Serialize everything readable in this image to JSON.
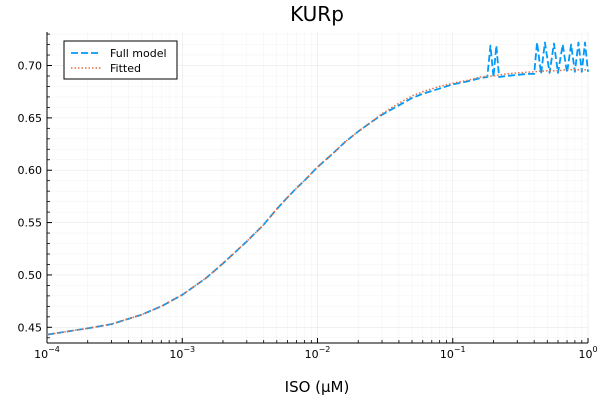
{
  "chart_data": {
    "type": "line",
    "title": "KURp",
    "xlabel": "ISO (μM)",
    "ylabel": "",
    "x_scale": "log",
    "xlim": [
      0.0001,
      1
    ],
    "ylim": [
      0.435,
      0.732
    ],
    "x_ticks": [
      {
        "value": 0.0001,
        "base": "10",
        "exp": "−4"
      },
      {
        "value": 0.001,
        "base": "10",
        "exp": "−3"
      },
      {
        "value": 0.01,
        "base": "10",
        "exp": "−2"
      },
      {
        "value": 0.1,
        "base": "10",
        "exp": "−1"
      },
      {
        "value": 1,
        "base": "10",
        "exp": "0"
      }
    ],
    "y_ticks": [
      0.45,
      0.5,
      0.55,
      0.6,
      0.65,
      0.7
    ],
    "y_tick_labels": [
      "0.45",
      "0.50",
      "0.55",
      "0.60",
      "0.65",
      "0.70"
    ],
    "grid": true,
    "legend_position": "top-left",
    "colors": {
      "full_model": "#009AFA",
      "fitted": "#E26F46"
    },
    "series": [
      {
        "name": "Full model",
        "style": "dashed",
        "x": [
          0.0001,
          0.0002,
          0.0003,
          0.0005,
          0.0007,
          0.001,
          0.0015,
          0.002,
          0.003,
          0.004,
          0.005,
          0.006,
          0.007,
          0.008,
          0.01,
          0.013,
          0.016,
          0.02,
          0.025,
          0.03,
          0.04,
          0.05,
          0.06,
          0.08,
          0.1,
          0.13,
          0.16,
          0.18,
          0.19,
          0.2,
          0.21,
          0.22,
          0.25,
          0.3,
          0.35,
          0.4,
          0.42,
          0.45,
          0.48,
          0.52,
          0.56,
          0.6,
          0.65,
          0.7,
          0.75,
          0.8,
          0.85,
          0.9,
          0.95,
          1
        ],
        "y": [
          0.443,
          0.449,
          0.453,
          0.462,
          0.47,
          0.481,
          0.497,
          0.511,
          0.532,
          0.548,
          0.563,
          0.574,
          0.583,
          0.59,
          0.603,
          0.616,
          0.627,
          0.637,
          0.646,
          0.653,
          0.662,
          0.669,
          0.673,
          0.678,
          0.682,
          0.685,
          0.688,
          0.689,
          0.719,
          0.689,
          0.719,
          0.689,
          0.69,
          0.691,
          0.692,
          0.692,
          0.722,
          0.692,
          0.722,
          0.693,
          0.721,
          0.693,
          0.72,
          0.693,
          0.72,
          0.694,
          0.722,
          0.694,
          0.722,
          0.694
        ]
      },
      {
        "name": "Fitted",
        "style": "dotted",
        "x": [
          0.0001,
          0.0002,
          0.0003,
          0.0005,
          0.0007,
          0.001,
          0.0015,
          0.002,
          0.003,
          0.004,
          0.005,
          0.006,
          0.007,
          0.008,
          0.01,
          0.013,
          0.016,
          0.02,
          0.025,
          0.03,
          0.04,
          0.05,
          0.06,
          0.08,
          0.1,
          0.13,
          0.16,
          0.2,
          0.25,
          0.3,
          0.4,
          0.5,
          0.6,
          0.7,
          0.8,
          0.9,
          1
        ],
        "y": [
          0.443,
          0.449,
          0.453,
          0.462,
          0.47,
          0.481,
          0.497,
          0.511,
          0.532,
          0.548,
          0.563,
          0.574,
          0.583,
          0.59,
          0.603,
          0.616,
          0.627,
          0.637,
          0.646,
          0.654,
          0.664,
          0.671,
          0.675,
          0.68,
          0.683,
          0.686,
          0.689,
          0.69,
          0.692,
          0.693,
          0.694,
          0.695,
          0.695,
          0.696,
          0.696,
          0.696,
          0.696
        ]
      }
    ]
  }
}
